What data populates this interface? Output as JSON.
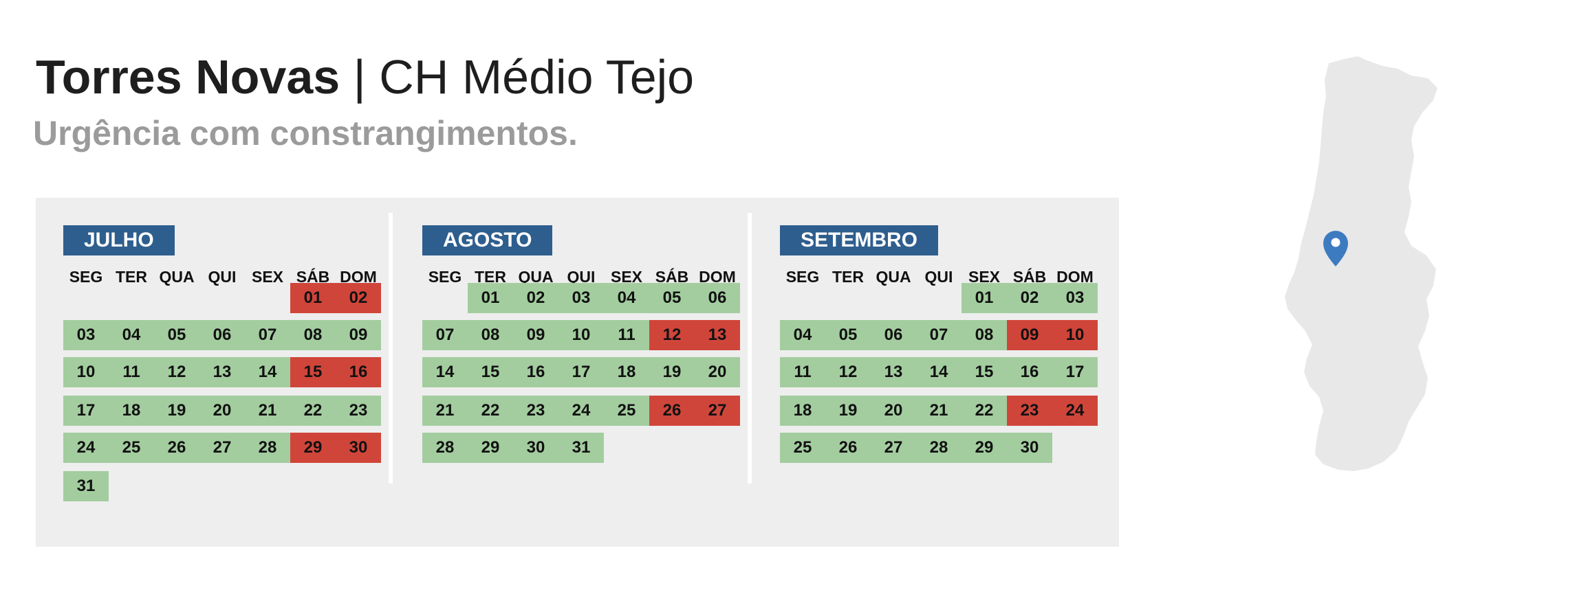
{
  "header": {
    "title_bold": "Torres Novas",
    "title_rest": " | CH Médio Tejo",
    "subtitle": "Urgência com constrangimentos."
  },
  "colors": {
    "ok": "#a3cd9f",
    "constrained": "#d0453a",
    "month_tag": "#2e5e8e",
    "panel": "#eeeeee",
    "pin": "#3d7bc0"
  },
  "weekdays": [
    "SEG",
    "TER",
    "QUA",
    "QUI",
    "SEX",
    "SÁB",
    "DOM"
  ],
  "months": [
    {
      "name": "JULHO",
      "first_weekday": 5,
      "days": 31,
      "constrained": [
        "01",
        "02",
        "15",
        "16",
        "29",
        "30"
      ]
    },
    {
      "name": "AGOSTO",
      "first_weekday": 1,
      "days": 31,
      "constrained": [
        "12",
        "13",
        "26",
        "27"
      ]
    },
    {
      "name": "SETEMBRO",
      "first_weekday": 4,
      "days": 30,
      "constrained": [
        "09",
        "10",
        "23",
        "24"
      ]
    }
  ],
  "map": {
    "icon": "location-pin-icon",
    "label": "portugal-map"
  }
}
